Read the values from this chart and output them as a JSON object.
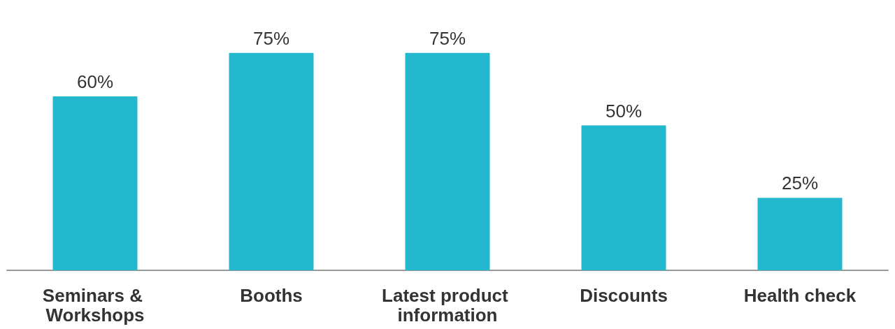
{
  "chart_data": {
    "type": "bar",
    "categories": [
      "Seminars & Workshops",
      "Booths",
      "Latest product information",
      "Discounts",
      "Health check"
    ],
    "values": [
      60,
      75,
      75,
      50,
      25
    ],
    "value_labels": [
      "60%",
      "75%",
      "75%",
      "50%",
      "25%"
    ],
    "color": "#23b8ce"
  }
}
